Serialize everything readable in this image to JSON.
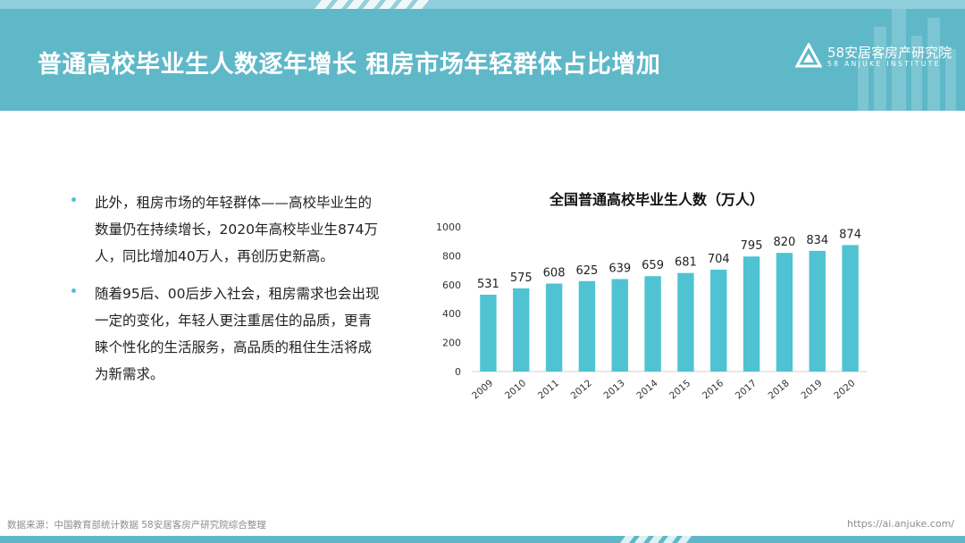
{
  "header": {
    "title": "普通高校毕业生人数逐年增长 租房市场年轻群体占比增加",
    "logo_name": "58安居客房产研究院",
    "logo_sub": "58 ANJUKE INSTITUTE",
    "logo_icon": "triangle-logo-icon"
  },
  "bullets": [
    {
      "text": "此外，租房市场的年轻群体——高校毕业生的数量仍在持续增长，2020年高校毕业生874万人，同比增加40万人，再创历史新高。"
    },
    {
      "text": "随着95后、00后步入社会，租房需求也会出现一定的变化，年轻人更注重居住的品质，更青睐个性化的生活服务，高品质的租住生活将成为新需求。"
    }
  ],
  "chart_data": {
    "type": "bar",
    "title": "全国普通高校毕业生人数（万人）",
    "categories": [
      "2009",
      "2010",
      "2011",
      "2012",
      "2013",
      "2014",
      "2015",
      "2016",
      "2017",
      "2018",
      "2019",
      "2020"
    ],
    "values": [
      531,
      575,
      608,
      625,
      639,
      659,
      681,
      704,
      795,
      820,
      834,
      874
    ],
    "ylim": [
      0,
      1000
    ],
    "yticks": [
      0,
      200,
      400,
      600,
      800,
      1000
    ],
    "grid": false,
    "bar_color": "#4fc3d2",
    "data_labels": true
  },
  "footer": {
    "source": "数据来源：中国教育部统计数据 58安居客房产研究院综合整理",
    "url": "https://ai.anjuke.com/"
  },
  "colors": {
    "header_bg": "#5fb8c8",
    "accent": "#4fc3d2"
  }
}
